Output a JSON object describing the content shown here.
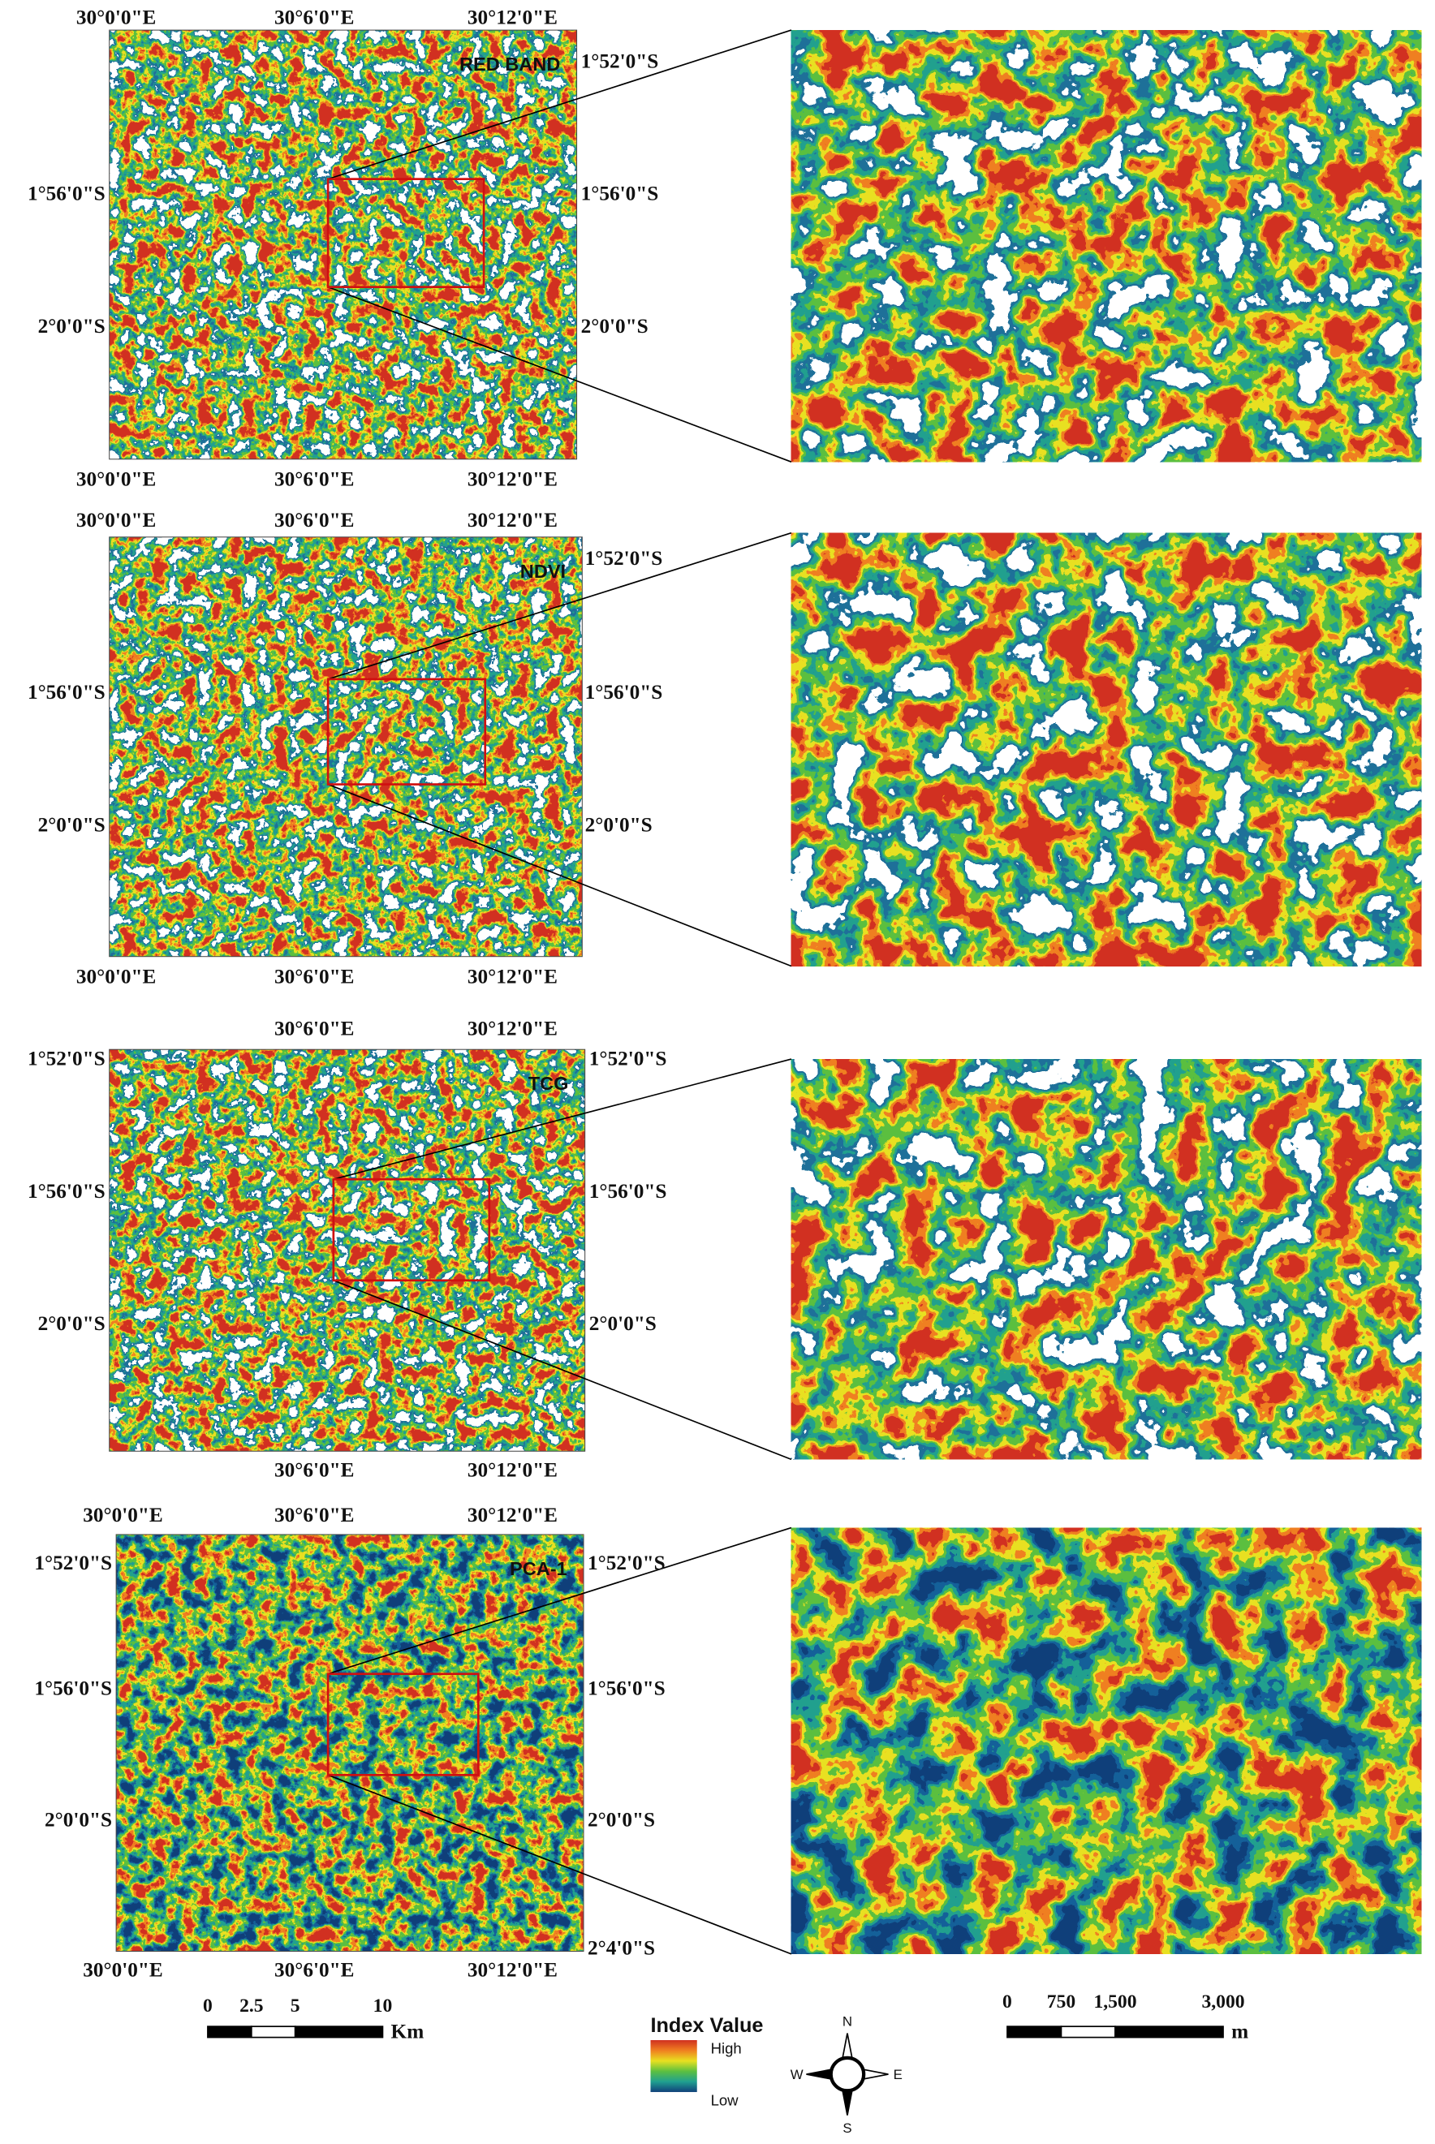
{
  "panels": [
    {
      "title": "RED BAND",
      "top_labels": [
        "30°0'0\"E",
        "30°6'0\"E",
        "30°12'0\"E"
      ],
      "bottom_labels": [
        "30°0'0\"E",
        "30°6'0\"E",
        "30°12'0\"E"
      ],
      "left_labels": [
        "1°56'0\"S",
        "2°0'0\"S"
      ],
      "right_labels": [
        "1°52'0\"S",
        "1°56'0\"S",
        "2°0'0\"S"
      ]
    },
    {
      "title": "NDVI",
      "top_labels": [
        "30°0'0\"E",
        "30°6'0\"E",
        "30°12'0\"E"
      ],
      "bottom_labels": [
        "30°0'0\"E",
        "30°6'0\"E",
        "30°12'0\"E"
      ],
      "left_labels": [
        "1°56'0\"S",
        "2°0'0\"S"
      ],
      "right_labels": [
        "1°52'0\"S",
        "1°56'0\"S",
        "2°0'0\"S"
      ]
    },
    {
      "title": "TCG",
      "top_labels": [
        "30°6'0\"E",
        "30°12'0\"E"
      ],
      "bottom_labels": [
        "30°6'0\"E",
        "30°12'0\"E"
      ],
      "left_labels": [
        "1°52'0\"S",
        "1°56'0\"S",
        "2°0'0\"S"
      ],
      "right_labels": [
        "1°52'0\"S",
        "1°56'0\"S",
        "2°0'0\"S"
      ]
    },
    {
      "title": "PCA-1",
      "top_labels": [
        "30°0'0\"E",
        "30°6'0\"E",
        "30°12'0\"E"
      ],
      "bottom_labels": [
        "30°0'0\"E",
        "30°6'0\"E",
        "30°12'0\"E"
      ],
      "left_labels": [
        "1°52'0\"S",
        "1°56'0\"S",
        "2°0'0\"S"
      ],
      "right_labels": [
        "1°52'0\"S",
        "1°56'0\"S",
        "2°0'0\"S",
        "2°4'0\"S"
      ]
    }
  ],
  "scale_bars": [
    {
      "unit": "Km",
      "ticks": [
        0,
        2.5,
        5,
        10
      ]
    },
    {
      "unit": "m",
      "ticks": [
        0,
        750,
        {
          "value": 1500,
          "label": "1,500"
        },
        {
          "value": 3000,
          "label": "3,000"
        }
      ]
    }
  ],
  "legend": {
    "title": "Index Value",
    "high": "High",
    "low": "Low"
  },
  "compass": {
    "n": "N",
    "e": "E",
    "s": "S",
    "w": "W"
  }
}
